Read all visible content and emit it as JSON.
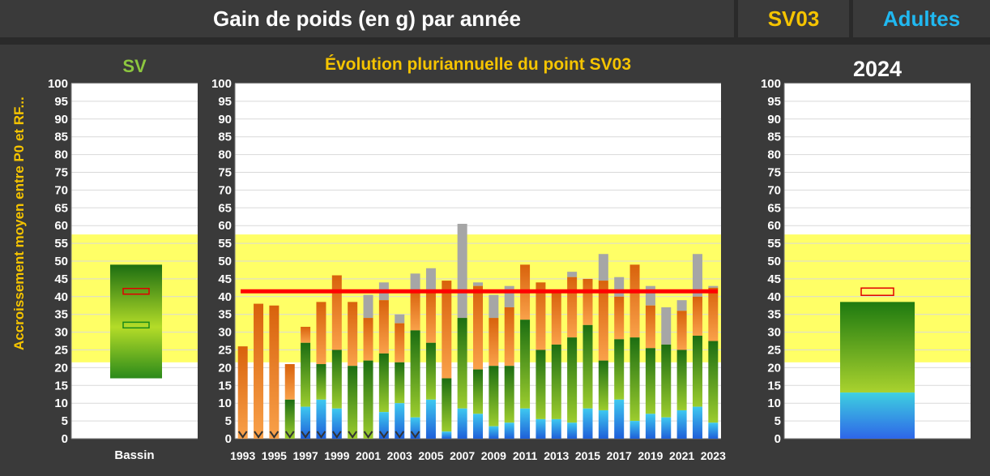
{
  "header": {
    "title": "Gain de poids (en g) par année",
    "station_code": "SV03",
    "category": "Adultes"
  },
  "colors": {
    "background": "#3a3a3a",
    "title_yellow": "#f5c400",
    "category_blue": "#20b8f0",
    "panel_left_title": "#8cc63f",
    "reference_band": "#ffff66",
    "mean_line": "#ff0000",
    "orange": "#e87a1a",
    "green": "#2f8a1e",
    "blue": "#2a7de0",
    "gray": "#a6a6a6"
  },
  "chart_data": [
    {
      "id": "basin",
      "type": "bar",
      "title": "SV",
      "ylabel": "Accroissement moyen entre P0 et RF...",
      "ylim": [
        0,
        100
      ],
      "yticks": [
        0,
        5,
        10,
        15,
        20,
        25,
        30,
        35,
        40,
        45,
        50,
        55,
        60,
        65,
        70,
        75,
        80,
        85,
        90,
        95,
        100
      ],
      "reference_band": [
        21.5,
        57.5
      ],
      "categories": [
        "Bassin"
      ],
      "bar_range": [
        17,
        49
      ],
      "markers": [
        {
          "name": "red",
          "value": 41.5
        },
        {
          "name": "green",
          "value": 32
        }
      ]
    },
    {
      "id": "evolution",
      "type": "bar",
      "title": "Évolution pluriannuelle du point SV03",
      "ylim": [
        0,
        100
      ],
      "yticks": [
        0,
        5,
        10,
        15,
        20,
        25,
        30,
        35,
        40,
        45,
        50,
        55,
        60,
        65,
        70,
        75,
        80,
        85,
        90,
        95,
        100
      ],
      "reference_band": [
        21.5,
        57.5
      ],
      "mean_line": 41.5,
      "x_tick_labels": [
        "1993",
        "1995",
        "1997",
        "1999",
        "2001",
        "2003",
        "2005",
        "2007",
        "2009",
        "2011",
        "2013",
        "2015",
        "2017",
        "2019",
        "2021",
        "2023"
      ],
      "years": [
        1993,
        1994,
        1995,
        1996,
        1997,
        1998,
        1999,
        2000,
        2001,
        2002,
        2003,
        2004,
        2005,
        2006,
        2007,
        2008,
        2009,
        2010,
        2011,
        2012,
        2013,
        2014,
        2015,
        2016,
        2017,
        2018,
        2019,
        2020,
        2021,
        2022,
        2023
      ],
      "series": [
        {
          "values_blue": [
            0,
            0,
            0,
            0,
            9,
            11,
            8.5,
            0,
            0,
            7.5,
            10,
            6,
            11,
            2,
            8.5,
            7,
            3.5,
            4.5,
            8.5,
            5.5,
            5.5,
            4.5,
            8.5,
            8,
            11,
            5,
            7,
            6,
            8,
            9,
            4.5
          ]
        },
        {
          "values_green": [
            0,
            0,
            0,
            11,
            27,
            21,
            25,
            20.5,
            22,
            24,
            21.5,
            30.5,
            27,
            17,
            34,
            19.5,
            20.5,
            20.5,
            33.5,
            25,
            26.5,
            28.5,
            32,
            22,
            28,
            28.5,
            25.5,
            26.5,
            25,
            29,
            27.5
          ]
        },
        {
          "values_orange": [
            26,
            38,
            37.5,
            21,
            31.5,
            38.5,
            46,
            38.5,
            34,
            39,
            32.5,
            42,
            42,
            44.5,
            34,
            43,
            34,
            37,
            49,
            44,
            41.5,
            45.5,
            45,
            44.5,
            40,
            49,
            37.5,
            26.5,
            36,
            40,
            42.5
          ]
        },
        {
          "values_total": [
            26,
            38,
            37.5,
            21,
            31.5,
            38.5,
            46,
            38.5,
            40.5,
            44,
            35,
            46.5,
            48,
            44.5,
            60.5,
            44,
            40.5,
            43,
            49,
            44,
            41.5,
            47,
            45,
            52,
            45.5,
            49,
            43,
            37,
            39,
            52,
            43
          ]
        }
      ],
      "missing_marker_years": [
        1993,
        1994,
        1995,
        1996,
        1997,
        1998,
        1999,
        2000,
        2001,
        2002,
        2003,
        2004
      ]
    },
    {
      "id": "current",
      "type": "bar",
      "title": "2024",
      "ylim": [
        0,
        100
      ],
      "yticks": [
        0,
        5,
        10,
        15,
        20,
        25,
        30,
        35,
        40,
        45,
        50,
        55,
        60,
        65,
        70,
        75,
        80,
        85,
        90,
        95,
        100
      ],
      "reference_band": [
        21.5,
        57.5
      ],
      "bar_green_top": 38.5,
      "bar_blue_top": 13,
      "markers": [
        {
          "name": "red",
          "value": 41.5
        }
      ]
    }
  ]
}
